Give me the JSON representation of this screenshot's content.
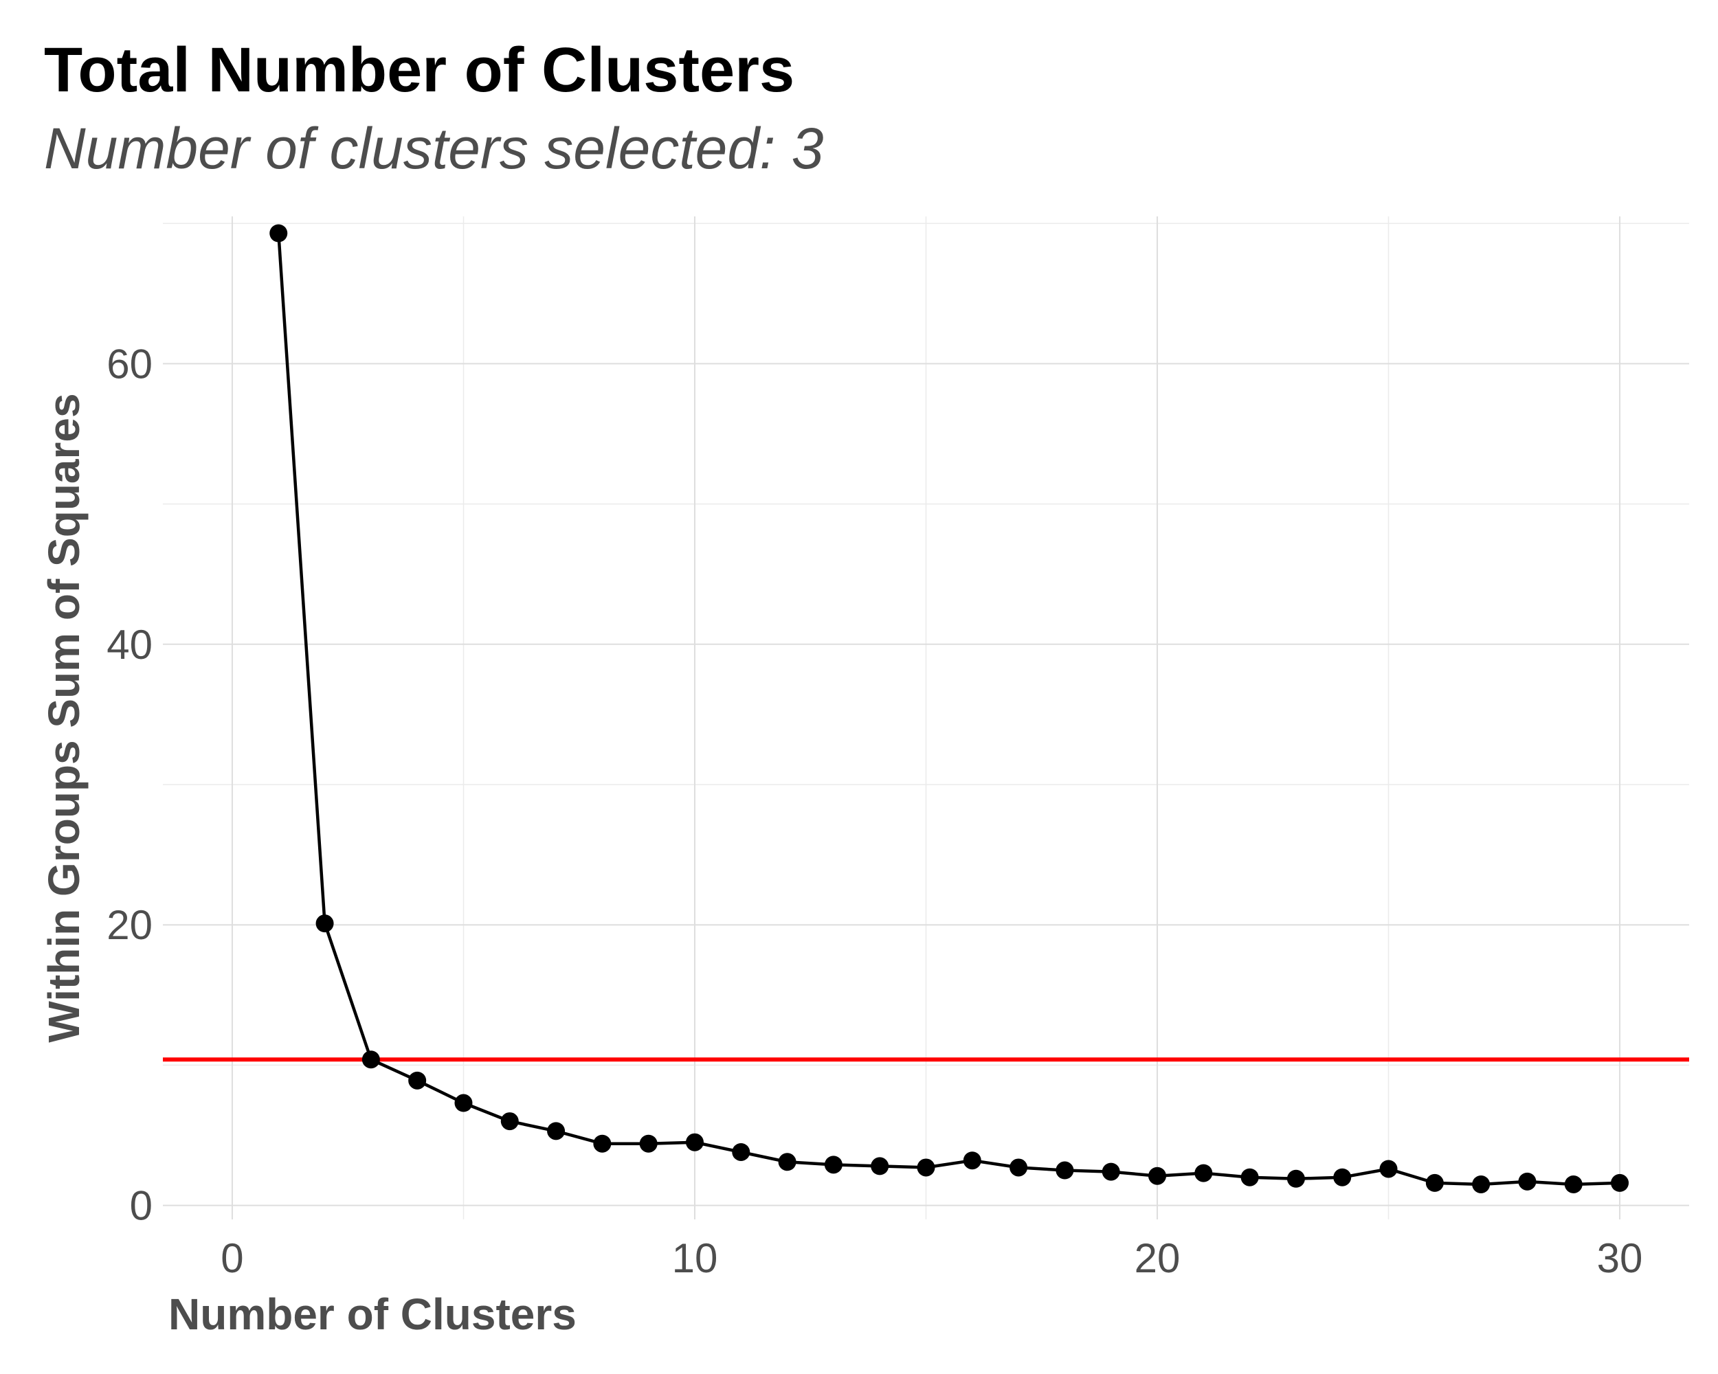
{
  "chart_data": {
    "type": "line",
    "title": "Total Number of Clusters",
    "subtitle": "Number of clusters selected: 3",
    "xlabel": "Number of Clusters",
    "ylabel": "Within Groups Sum of Squares",
    "xlim": [
      -1.5,
      31.5
    ],
    "ylim": [
      -1,
      70.5
    ],
    "x_ticks": [
      0,
      10,
      20,
      30
    ],
    "y_ticks": [
      0,
      20,
      40,
      60
    ],
    "x_minor_ticks": [
      5,
      15,
      25
    ],
    "y_minor_ticks": [
      10,
      30,
      50,
      70
    ],
    "grid": true,
    "legend": "none",
    "series": [
      {
        "x": [
          1,
          2,
          3,
          4,
          5,
          6,
          7,
          8,
          9,
          10,
          11,
          12,
          13,
          14,
          15,
          16,
          17,
          18,
          19,
          20,
          21,
          22,
          23,
          24,
          25,
          26,
          27,
          28,
          29,
          30
        ],
        "values": [
          69.3,
          20.1,
          10.4,
          8.9,
          7.3,
          6.0,
          5.3,
          4.4,
          4.4,
          4.5,
          3.8,
          3.1,
          2.9,
          2.8,
          2.7,
          3.2,
          2.7,
          2.5,
          2.4,
          2.1,
          2.3,
          2.0,
          1.9,
          2.0,
          2.6,
          1.6,
          1.5,
          1.7,
          1.5,
          1.6
        ]
      }
    ],
    "reference_line": {
      "orientation": "horizontal",
      "y": 10.4
    },
    "colors": {
      "line": "#000000",
      "points": "#000000",
      "reference_line": "#ff0000",
      "grid_major": "#dedede",
      "grid_minor": "#ebebeb"
    }
  }
}
